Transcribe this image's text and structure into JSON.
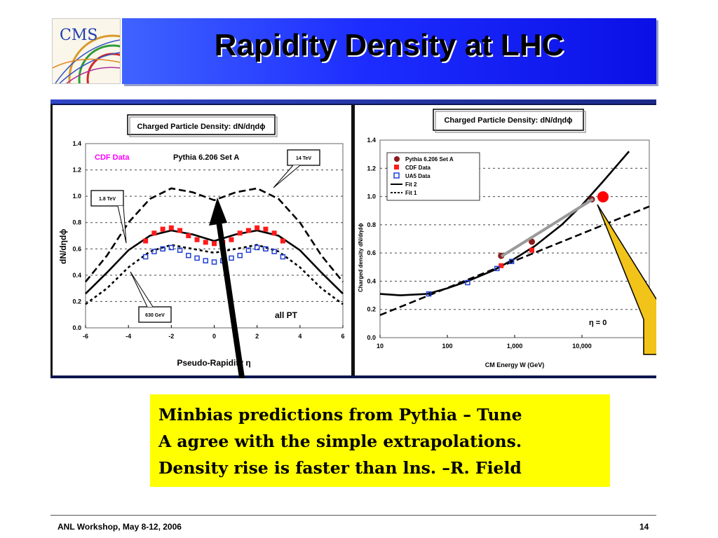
{
  "logo": {
    "text": "CMS"
  },
  "slide": {
    "title": "Rapidity Density at LHC"
  },
  "left_chart": {
    "title": "Charged Particle Density: dN/dηdϕ",
    "ylabel": "dN/dηdϕ",
    "xlabel": "Pseudo-Rapidity η",
    "data_label": "CDF Data",
    "model_label": "Pythia 6.206 Set A",
    "pt_label": "all PT",
    "callouts": [
      "14 TeV",
      "1.8 TeV",
      "630 GeV"
    ]
  },
  "right_chart": {
    "title": "Charged Particle Density: dN/dηdϕ",
    "ylabel": "Charged density dN/dηdϕ",
    "xlabel": "CM Energy W (GeV)",
    "eta_label": "η = 0",
    "legend": [
      "Pythia 6.206 Set A",
      "CDF Data",
      "UA5 Data",
      "Fit 2",
      "Fit 1"
    ]
  },
  "note": {
    "lines": [
      "Minbias predictions from Pythia – Tune",
      "A agree with the simple extrapolations.",
      "Density rise is faster than lns. –R. Field"
    ]
  },
  "footer": {
    "left": "ANL Workshop, May 8-12, 2006",
    "page": "14"
  },
  "colors": {
    "title_bar": "#1d2dff",
    "note_bg": "#ffff00",
    "cdf": "#ff1a1a",
    "ua5": "#1f3fd6",
    "pythia": "#8b1a1a",
    "callout": "#f2c318"
  },
  "chart_data": [
    {
      "type": "line",
      "title": "Charged Particle Density: dN/dηdϕ",
      "xlabel": "Pseudo-Rapidity η",
      "ylabel": "dN/dηdϕ",
      "xlim": [
        -6,
        6
      ],
      "ylim": [
        0,
        1.4
      ],
      "x_ticks": [
        "-6",
        "-4",
        "-2",
        "0",
        "2",
        "4",
        "6"
      ],
      "y_ticks": [
        "0.0",
        "0.2",
        "0.4",
        "0.6",
        "0.8",
        "1.0",
        "1.2",
        "1.4"
      ],
      "grid": "horizontal dashed",
      "series": [
        {
          "name": "14 TeV",
          "style": "dashed",
          "x": [
            -6,
            -5,
            -4,
            -3,
            -2,
            -1,
            0,
            1,
            2,
            3,
            4,
            5,
            6
          ],
          "y": [
            0.35,
            0.55,
            0.8,
            0.98,
            1.06,
            1.03,
            0.97,
            1.03,
            1.06,
            0.98,
            0.8,
            0.55,
            0.35
          ]
        },
        {
          "name": "1.8 TeV",
          "style": "solid",
          "x": [
            -6,
            -5,
            -4,
            -3,
            -2,
            -1,
            0,
            1,
            2,
            3,
            4,
            5,
            6
          ],
          "y": [
            0.26,
            0.42,
            0.59,
            0.7,
            0.74,
            0.71,
            0.66,
            0.71,
            0.74,
            0.7,
            0.59,
            0.42,
            0.26
          ]
        },
        {
          "name": "630 GeV",
          "style": "dotted",
          "x": [
            -6,
            -5,
            -4,
            -3,
            -2,
            -1,
            0,
            1,
            2,
            3,
            4,
            5,
            6
          ],
          "y": [
            0.18,
            0.3,
            0.46,
            0.58,
            0.63,
            0.6,
            0.57,
            0.6,
            0.63,
            0.58,
            0.46,
            0.3,
            0.18
          ]
        },
        {
          "name": "CDF Data",
          "marker": "filled-square",
          "x": [
            -3.2,
            -2.8,
            -2.4,
            -2.0,
            -1.6,
            -1.2,
            -0.8,
            -0.4,
            0.0,
            0.4,
            0.8,
            1.2,
            1.6,
            2.0,
            2.4,
            2.8,
            3.2
          ],
          "y": [
            0.66,
            0.72,
            0.75,
            0.76,
            0.74,
            0.7,
            0.67,
            0.65,
            0.64,
            0.65,
            0.67,
            0.72,
            0.74,
            0.76,
            0.75,
            0.72,
            0.66
          ]
        },
        {
          "name": "UA5 Data",
          "marker": "open-square",
          "x": [
            -3.2,
            -2.8,
            -2.4,
            -2.0,
            -1.6,
            -1.2,
            -0.8,
            -0.4,
            0.0,
            0.4,
            0.8,
            1.2,
            1.6,
            2.0,
            2.4,
            2.8,
            3.2
          ],
          "y": [
            0.54,
            0.58,
            0.6,
            0.61,
            0.59,
            0.55,
            0.53,
            0.51,
            0.5,
            0.51,
            0.53,
            0.55,
            0.59,
            0.61,
            0.6,
            0.58,
            0.54
          ]
        }
      ]
    },
    {
      "type": "scatter",
      "title": "Charged Particle Density: dN/dηdϕ",
      "xlabel": "CM Energy W (GeV)",
      "ylabel": "Charged density dN/dηdϕ",
      "xscale": "log",
      "xlim": [
        10,
        100000
      ],
      "ylim": [
        0,
        1.4
      ],
      "x_ticks": [
        "10",
        "100",
        "1,000",
        "10,000"
      ],
      "y_ticks": [
        "0.0",
        "0.2",
        "0.4",
        "0.6",
        "0.8",
        "1.0",
        "1.2",
        "1.4"
      ],
      "grid": "horizontal dashed",
      "legend_position": "top-left",
      "series": [
        {
          "name": "Pythia 6.206 Set A",
          "marker": "filled-circle",
          "x": [
            630,
            1800,
            14000
          ],
          "y": [
            0.58,
            0.68,
            0.98
          ]
        },
        {
          "name": "CDF Data",
          "marker": "filled-square",
          "x": [
            630,
            1800
          ],
          "y": [
            0.51,
            0.62
          ]
        },
        {
          "name": "UA5 Data",
          "marker": "open-square",
          "x": [
            53,
            200,
            546,
            900
          ],
          "y": [
            0.31,
            0.39,
            0.49,
            0.54
          ]
        },
        {
          "name": "Fit 2",
          "style": "solid",
          "x": [
            10,
            20,
            50,
            100,
            200,
            500,
            1000,
            2000,
            5000,
            10000,
            20000,
            50000
          ],
          "y": [
            0.31,
            0.3,
            0.31,
            0.35,
            0.4,
            0.48,
            0.56,
            0.65,
            0.8,
            0.94,
            1.1,
            1.32
          ]
        },
        {
          "name": "Fit 1",
          "style": "dashed",
          "x": [
            10,
            100000
          ],
          "y": [
            0.16,
            0.93
          ]
        }
      ],
      "annotations": [
        "η = 0"
      ]
    }
  ]
}
